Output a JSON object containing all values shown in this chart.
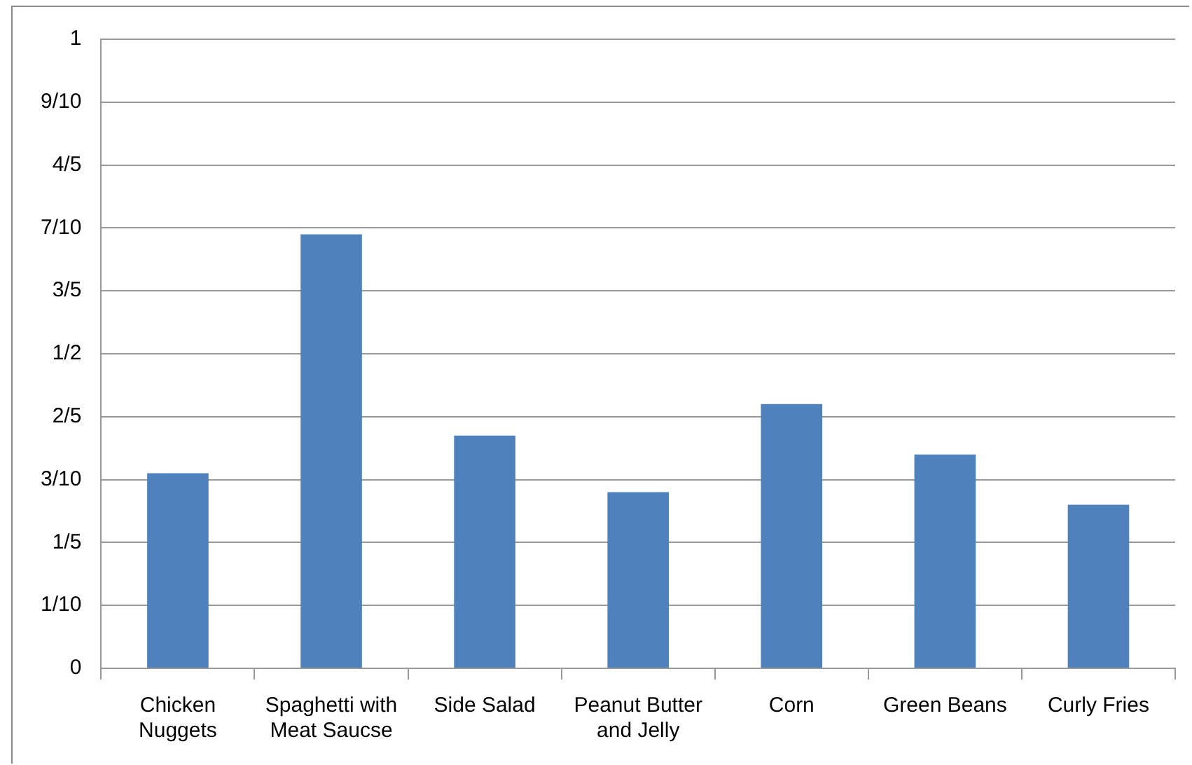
{
  "chart_data": {
    "type": "bar",
    "categories": [
      "Chicken Nuggets",
      "Spaghetti with Meat Saucse",
      "Side Salad",
      "Peanut Butter and Jelly",
      "Corn",
      "Green Beans",
      "Curly Fries"
    ],
    "values": [
      0.31,
      0.69,
      0.37,
      0.28,
      0.42,
      0.34,
      0.26
    ],
    "color": "#4f81bd",
    "ylim": [
      0,
      1
    ],
    "yticks": [
      0,
      {
        "value": 0.1,
        "label": "1/10"
      },
      {
        "value": 0.2,
        "label": "1/5"
      },
      {
        "value": 0.3,
        "label": "3/10"
      },
      {
        "value": 0.4,
        "label": "2/5"
      },
      {
        "value": 0.5,
        "label": "1/2"
      },
      {
        "value": 0.6,
        "label": "3/5"
      },
      {
        "value": 0.7,
        "label": "7/10"
      },
      {
        "value": 0.8,
        "label": "4/5"
      },
      {
        "value": 0.9,
        "label": "9/10"
      },
      1
    ],
    "grid": "y",
    "legend": false
  }
}
